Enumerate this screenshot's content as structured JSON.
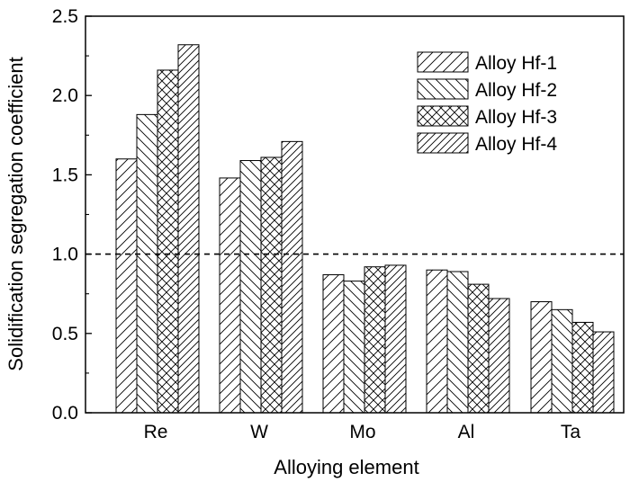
{
  "chart_data": {
    "type": "bar",
    "xlabel": "Alloying element",
    "ylabel": "Solidification segregation coefficient",
    "ylim": [
      0,
      2.5
    ],
    "y_ticks": [
      "0.0",
      "0.5",
      "1.0",
      "1.5",
      "2.0",
      "2.5"
    ],
    "categories": [
      "Re",
      "W",
      "Mo",
      "Al",
      "Ta"
    ],
    "series": [
      {
        "name": "Alloy Hf-1",
        "values": [
          1.6,
          1.48,
          0.87,
          0.9,
          0.7
        ],
        "pattern": "diagonal-up"
      },
      {
        "name": "Alloy Hf-2",
        "values": [
          1.88,
          1.59,
          0.83,
          0.89,
          0.65
        ],
        "pattern": "diagonal-down"
      },
      {
        "name": "Alloy Hf-3",
        "values": [
          2.16,
          1.61,
          0.92,
          0.81,
          0.57
        ],
        "pattern": "crosshatch"
      },
      {
        "name": "Alloy Hf-4",
        "values": [
          2.32,
          1.71,
          0.93,
          0.72,
          0.51
        ],
        "pattern": "diagonal-up-dense"
      }
    ],
    "reference_line": {
      "value": 1.0,
      "style": "dashed"
    },
    "legend_position": "top-right",
    "grid": false,
    "colors": {
      "stroke": "#000000",
      "fill": "#ffffff"
    }
  }
}
